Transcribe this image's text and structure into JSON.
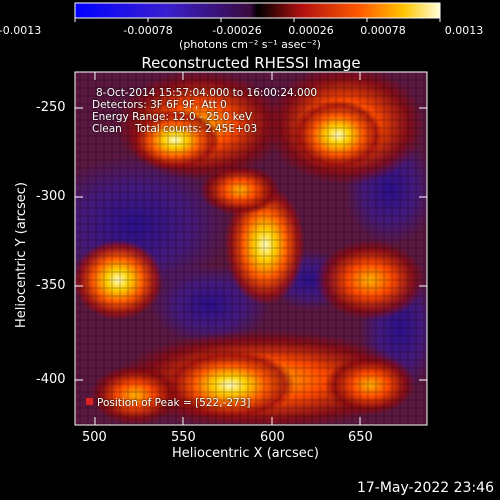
{
  "colorbar": {
    "ticks": [
      "-0.0013",
      "-0.00078",
      "-0.00026",
      "0.00026",
      "0.00078",
      "0.0013"
    ],
    "units_label": "(photons cm⁻² s⁻¹ asec⁻²)"
  },
  "title": "Reconstructed RHESSI Image",
  "info": {
    "time": "8-Oct-2014 15:57:04.000 to 16:00:24.000",
    "detectors": "Detectors: 3F 6F 9F, Att 0",
    "energy": "Energy Range: 12.0 - 25.0 keV",
    "clean": "Clean    Total counts: 2.45E+03",
    "peak": "Position of Peak = [522,-273]"
  },
  "axes": {
    "xlabel": "Heliocentric X (arcsec)",
    "ylabel": "Heliocentric Y (arcsec)",
    "xticks": [
      "500",
      "550",
      "600",
      "650"
    ],
    "yticks": [
      "-250",
      "-300",
      "-350",
      "-400"
    ]
  },
  "footer": "17-May-2022 23:46",
  "colors": {
    "background": "#000000",
    "foreground": "#ffffff"
  }
}
